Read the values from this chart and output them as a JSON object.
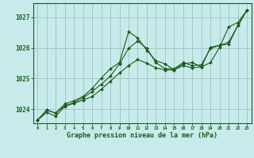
{
  "bg_color": "#c8eaea",
  "grid_color": "#a0c8c4",
  "line_color": "#1a5c1a",
  "marker_color": "#1a5c1a",
  "xlabel": "Graphe pression niveau de la mer (hPa)",
  "ylim": [
    1023.55,
    1027.45
  ],
  "xlim": [
    -0.5,
    23.5
  ],
  "yticks": [
    1024,
    1025,
    1026,
    1027
  ],
  "xticks": [
    0,
    1,
    2,
    3,
    4,
    5,
    6,
    7,
    8,
    9,
    10,
    11,
    12,
    13,
    14,
    15,
    16,
    17,
    18,
    19,
    20,
    21,
    22,
    23
  ],
  "series": [
    [
      1023.65,
      1023.9,
      1023.78,
      1024.1,
      1024.2,
      1024.3,
      1024.42,
      1024.65,
      1024.92,
      1025.18,
      1025.42,
      1025.62,
      1025.5,
      1025.35,
      1025.28,
      1025.28,
      1025.42,
      1025.35,
      1025.38,
      1025.52,
      1026.02,
      1026.68,
      1026.82,
      1027.22
    ],
    [
      1023.65,
      1023.98,
      1023.88,
      1024.12,
      1024.22,
      1024.38,
      1024.58,
      1024.82,
      1025.08,
      1025.48,
      1025.98,
      1026.22,
      1025.98,
      1025.52,
      1025.32,
      1025.32,
      1025.52,
      1025.42,
      1025.45,
      1025.98,
      1026.08,
      1026.18,
      1026.72,
      1027.22
    ],
    [
      1023.65,
      1023.98,
      1023.88,
      1024.18,
      1024.28,
      1024.42,
      1024.68,
      1025.02,
      1025.32,
      1025.52,
      1026.52,
      1026.32,
      1025.92,
      1025.58,
      1025.48,
      1025.28,
      1025.48,
      1025.52,
      1025.38,
      1026.02,
      1026.08,
      1026.12,
      1026.72,
      1027.22
    ]
  ]
}
